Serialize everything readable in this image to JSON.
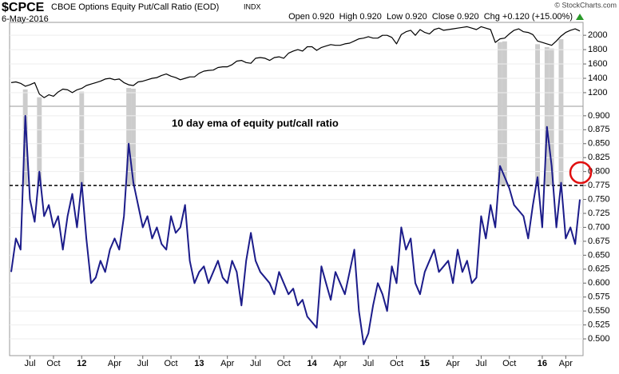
{
  "header": {
    "symbol": "$CPCE",
    "title": "CBOE Options Equity Put/Call Ratio (EOD)",
    "exchange": "INDX",
    "date": "6-May-2016",
    "quote": "Open 0.920  High 0.920  Low 0.920  Close 0.920  Chg +0.120 (+15.00%)",
    "credit": "© StockCharts.com"
  },
  "chart_data": [
    {
      "type": "line",
      "color": "#000000",
      "ylim": [
        1010,
        2180
      ],
      "yticks": [
        1200,
        1400,
        1600,
        1800,
        2000
      ],
      "values": [
        1340,
        1350,
        1330,
        1290,
        1310,
        1340,
        1180,
        1130,
        1170,
        1150,
        1210,
        1250,
        1240,
        1200,
        1240,
        1260,
        1300,
        1320,
        1340,
        1360,
        1390,
        1400,
        1380,
        1390,
        1340,
        1310,
        1300,
        1350,
        1360,
        1380,
        1400,
        1410,
        1440,
        1460,
        1430,
        1410,
        1380,
        1400,
        1420,
        1420,
        1470,
        1500,
        1510,
        1515,
        1550,
        1560,
        1560,
        1590,
        1640,
        1650,
        1620,
        1610,
        1680,
        1690,
        1680,
        1650,
        1690,
        1700,
        1680,
        1750,
        1780,
        1800,
        1780,
        1840,
        1840,
        1790,
        1830,
        1850,
        1870,
        1860,
        1860,
        1880,
        1890,
        1920,
        1950,
        1960,
        1980,
        1960,
        1960,
        2000,
        2000,
        1970,
        1880,
        2010,
        2050,
        2070,
        2000,
        2080,
        2040,
        2020,
        2080,
        2100,
        2070,
        2080,
        2090,
        2100,
        2110,
        2120,
        2100,
        2080,
        2120,
        2100,
        2080,
        1900,
        1950,
        1960,
        2020,
        2070,
        2090,
        2050,
        2040,
        2010,
        1920,
        1900,
        1880,
        1860,
        1920,
        1990,
        2040,
        2070,
        2090,
        2060
      ]
    },
    {
      "type": "line",
      "color": "#1c1c8a",
      "highlight_color": "#cccccc",
      "threshold": 0.775,
      "annotation": "10 day ema of equity put/call ratio",
      "ylim": [
        0.47,
        0.917
      ],
      "yticks": [
        {
          "value": 0.5,
          "label": "0.500"
        },
        {
          "value": 0.525,
          "label": "0.525"
        },
        {
          "value": 0.55,
          "label": "0.550"
        },
        {
          "value": 0.575,
          "label": "0.575"
        },
        {
          "value": 0.6,
          "label": "0.600"
        },
        {
          "value": 0.625,
          "label": "0.625"
        },
        {
          "value": 0.65,
          "label": "0.650"
        },
        {
          "value": 0.675,
          "label": "0.675"
        },
        {
          "value": 0.7,
          "label": "0.700"
        },
        {
          "value": 0.725,
          "label": "0.725"
        },
        {
          "value": 0.75,
          "label": "0.750"
        },
        {
          "value": 0.775,
          "label": "0.775"
        },
        {
          "value": 0.8,
          "label": "0.800"
        },
        {
          "value": 0.825,
          "label": "0.825"
        },
        {
          "value": 0.85,
          "label": "0.850"
        },
        {
          "value": 0.875,
          "label": "0.875"
        },
        {
          "value": 0.9,
          "label": "0.900"
        }
      ],
      "categories": [
        null,
        null,
        null,
        null,
        "Jul",
        null,
        null,
        null,
        null,
        "Oct",
        null,
        null,
        null,
        null,
        null,
        "12",
        null,
        null,
        null,
        null,
        null,
        null,
        "Apr",
        null,
        null,
        null,
        null,
        null,
        "Jul",
        null,
        null,
        null,
        null,
        null,
        "Oct",
        null,
        null,
        null,
        null,
        null,
        "13",
        null,
        null,
        null,
        null,
        null,
        "Apr",
        null,
        null,
        null,
        null,
        null,
        "Jul",
        null,
        null,
        null,
        null,
        null,
        "Oct",
        null,
        null,
        null,
        null,
        null,
        "14",
        null,
        null,
        null,
        null,
        null,
        "Apr",
        null,
        null,
        null,
        null,
        null,
        "Jul",
        null,
        null,
        null,
        null,
        null,
        "Oct",
        null,
        null,
        null,
        null,
        null,
        "15",
        null,
        null,
        null,
        null,
        null,
        "Apr",
        null,
        null,
        null,
        null,
        null,
        "Jul",
        null,
        null,
        null,
        null,
        null,
        "Oct",
        null,
        null,
        null,
        null,
        null,
        null,
        "16",
        null,
        null,
        null,
        null,
        "Apr",
        null,
        null,
        null
      ],
      "values": [
        0.62,
        0.68,
        0.66,
        0.9,
        0.75,
        0.71,
        0.8,
        0.72,
        0.74,
        0.7,
        0.72,
        0.66,
        0.72,
        0.76,
        0.7,
        0.78,
        0.68,
        0.6,
        0.61,
        0.64,
        0.62,
        0.66,
        0.68,
        0.66,
        0.72,
        0.85,
        0.78,
        0.74,
        0.7,
        0.72,
        0.68,
        0.7,
        0.67,
        0.66,
        0.72,
        0.69,
        0.7,
        0.74,
        0.64,
        0.6,
        0.62,
        0.63,
        0.6,
        0.62,
        0.64,
        0.61,
        0.6,
        0.64,
        0.62,
        0.56,
        0.64,
        0.69,
        0.64,
        0.62,
        0.61,
        0.6,
        0.58,
        0.62,
        0.6,
        0.58,
        0.59,
        0.56,
        0.57,
        0.54,
        0.53,
        0.52,
        0.63,
        0.6,
        0.57,
        0.62,
        0.6,
        0.58,
        0.62,
        0.66,
        0.55,
        0.49,
        0.51,
        0.56,
        0.6,
        0.58,
        0.55,
        0.63,
        0.6,
        0.7,
        0.66,
        0.68,
        0.6,
        0.58,
        0.62,
        0.64,
        0.66,
        0.62,
        0.63,
        0.64,
        0.6,
        0.66,
        0.62,
        0.64,
        0.6,
        0.61,
        0.72,
        0.68,
        0.74,
        0.7,
        0.81,
        0.79,
        0.77,
        0.74,
        0.73,
        0.72,
        0.68,
        0.74,
        0.79,
        0.7,
        0.88,
        0.81,
        0.7,
        0.78,
        0.68,
        0.7,
        0.67,
        0.75
      ]
    }
  ]
}
